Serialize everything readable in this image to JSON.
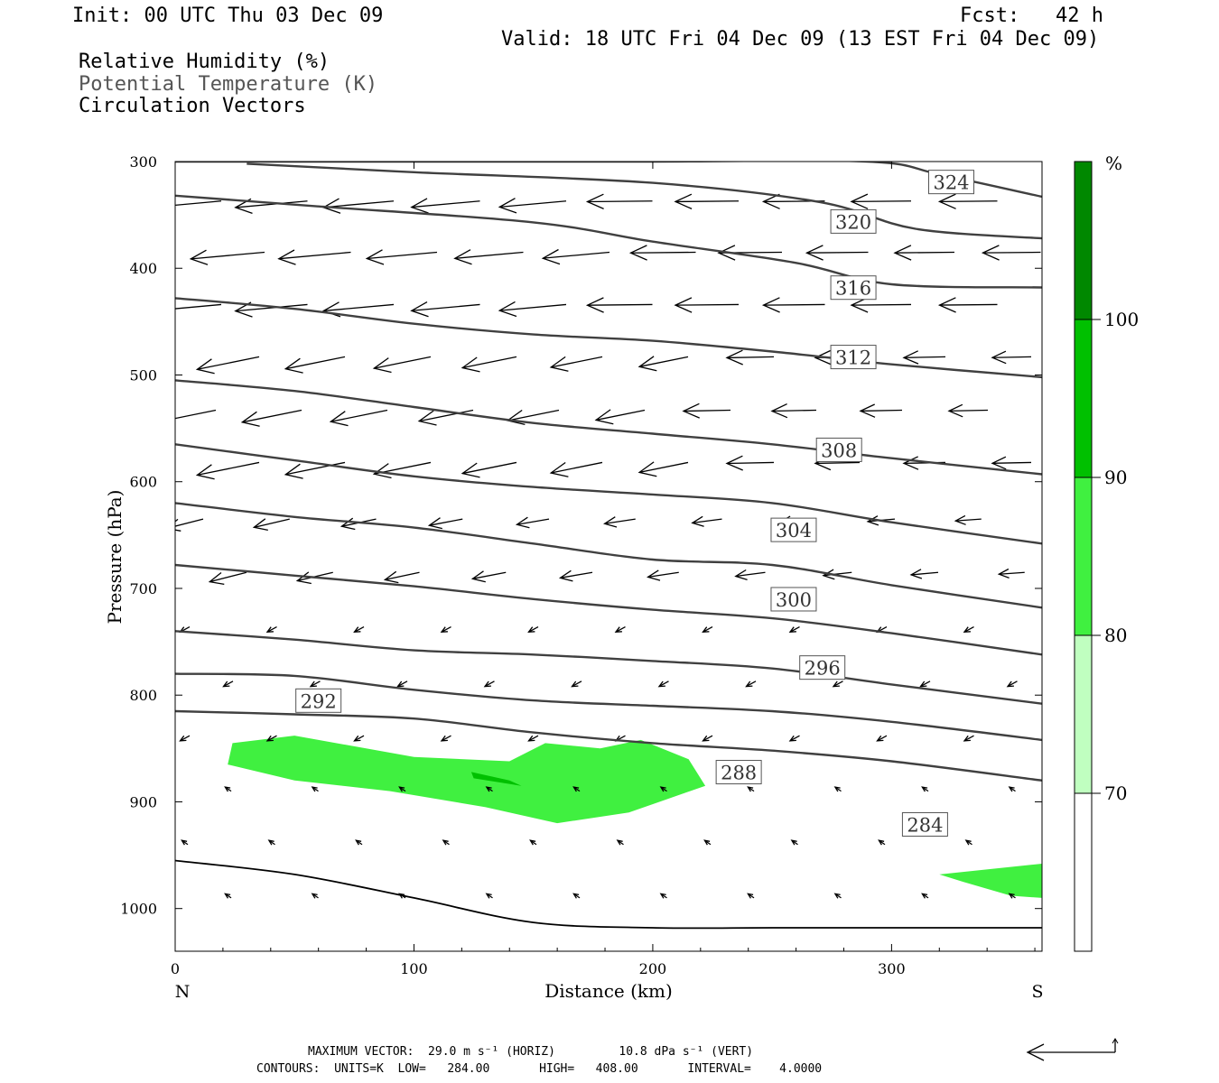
{
  "header": {
    "init": "Init: 00 UTC Thu 03 Dec 09",
    "fcst": "Fcst:   42 h",
    "valid": "Valid: 18 UTC Fri 04 Dec 09 (13 EST Fri 04 Dec 09)"
  },
  "legend_lines": {
    "rh": "Relative Humidity (%)",
    "theta": "Potential Temperature (K)",
    "vectors": "Circulation Vectors"
  },
  "footer": {
    "max_vector": "MAXIMUM VECTOR:  29.0 m s⁻¹ (HORIZ)         10.8 dPa s⁻¹ (VERT)",
    "contours": "CONTOURS:  UNITS=K  LOW=   284.00       HIGH=   408.00       INTERVAL=    4.0000"
  },
  "chart_data": {
    "type": "contour",
    "xlabel": "Distance (km)",
    "ylabel": "Pressure (hPa)",
    "xlim": [
      0,
      363
    ],
    "ylim": [
      300,
      1040
    ],
    "y_inverted": true,
    "xticks": [
      0,
      100,
      200,
      300
    ],
    "yticks": [
      300,
      400,
      500,
      600,
      700,
      800,
      900,
      1000
    ],
    "x_end_labels": {
      "left": "N",
      "right": "S"
    },
    "colorbar": {
      "unit": "%",
      "levels": [
        70,
        80,
        90,
        100
      ],
      "colors": [
        "#ffffff",
        "#c0ffc0",
        "#40f040",
        "#00c000",
        "#008800"
      ]
    },
    "theta_contours": [
      {
        "label": "324",
        "points": [
          [
            0,
            300
          ],
          [
            100,
            300
          ],
          [
            200,
            300
          ],
          [
            290,
            300
          ],
          [
            320,
            312
          ],
          [
            363,
            333
          ]
        ],
        "label_at": [
          325,
          320
        ]
      },
      {
        "label": "320",
        "points": [
          [
            30,
            302
          ],
          [
            100,
            310
          ],
          [
            200,
            320
          ],
          [
            270,
            338
          ],
          [
            310,
            363
          ],
          [
            363,
            372
          ]
        ],
        "label_at": [
          284,
          357
        ]
      },
      {
        "label": "316",
        "points": [
          [
            0,
            332
          ],
          [
            60,
            342
          ],
          [
            150,
            357
          ],
          [
            200,
            375
          ],
          [
            260,
            395
          ],
          [
            300,
            415
          ],
          [
            363,
            418
          ]
        ],
        "label_at": [
          284,
          419
        ]
      },
      {
        "label": "312",
        "points": [
          [
            0,
            428
          ],
          [
            50,
            438
          ],
          [
            100,
            452
          ],
          [
            150,
            462
          ],
          [
            200,
            468
          ],
          [
            250,
            478
          ],
          [
            300,
            490
          ],
          [
            363,
            502
          ]
        ],
        "label_at": [
          284,
          484
        ]
      },
      {
        "label": "308",
        "points": [
          [
            0,
            505
          ],
          [
            50,
            515
          ],
          [
            100,
            530
          ],
          [
            150,
            545
          ],
          [
            200,
            555
          ],
          [
            250,
            565
          ],
          [
            300,
            578
          ],
          [
            363,
            593
          ]
        ],
        "label_at": [
          278,
          571
        ]
      },
      {
        "label": "304",
        "points": [
          [
            0,
            565
          ],
          [
            50,
            580
          ],
          [
            100,
            595
          ],
          [
            150,
            605
          ],
          [
            200,
            612
          ],
          [
            250,
            620
          ],
          [
            300,
            638
          ],
          [
            363,
            658
          ]
        ],
        "label_at": [
          259,
          646
        ]
      },
      {
        "label": "300",
        "points": [
          [
            0,
            620
          ],
          [
            50,
            633
          ],
          [
            100,
            643
          ],
          [
            150,
            658
          ],
          [
            200,
            673
          ],
          [
            250,
            678
          ],
          [
            300,
            697
          ],
          [
            363,
            718
          ]
        ],
        "label_at": [
          259,
          711
        ]
      },
      {
        "label": "296",
        "points": [
          [
            0,
            678
          ],
          [
            50,
            688
          ],
          [
            100,
            698
          ],
          [
            150,
            710
          ],
          [
            200,
            720
          ],
          [
            250,
            728
          ],
          [
            300,
            742
          ],
          [
            363,
            762
          ]
        ],
        "label_at": [
          271,
          775
        ]
      },
      {
        "label": "292",
        "points": [
          [
            0,
            740
          ],
          [
            50,
            748
          ],
          [
            100,
            758
          ],
          [
            150,
            762
          ],
          [
            200,
            768
          ],
          [
            250,
            775
          ],
          [
            300,
            790
          ],
          [
            363,
            808
          ]
        ],
        "label_at": [
          60,
          806
        ]
      },
      {
        "label": "288",
        "points": [
          [
            0,
            780
          ],
          [
            50,
            782
          ],
          [
            100,
            795
          ],
          [
            150,
            805
          ],
          [
            200,
            810
          ],
          [
            250,
            815
          ],
          [
            300,
            825
          ],
          [
            363,
            842
          ]
        ],
        "label_at": [
          236,
          873
        ]
      },
      {
        "label": "284",
        "points": [
          [
            0,
            815
          ],
          [
            50,
            818
          ],
          [
            100,
            822
          ],
          [
            150,
            835
          ],
          [
            200,
            845
          ],
          [
            250,
            852
          ],
          [
            300,
            862
          ],
          [
            363,
            880
          ]
        ],
        "label_at": [
          314,
          922
        ]
      },
      {
        "label": "",
        "points": [
          [
            0,
            955
          ],
          [
            50,
            968
          ],
          [
            100,
            990
          ],
          [
            150,
            1013
          ],
          [
            200,
            1018
          ],
          [
            250,
            1018
          ],
          [
            300,
            1018
          ],
          [
            363,
            1018
          ]
        ],
        "label_at": null
      }
    ],
    "humidity_areas": [
      {
        "level": 80,
        "points": [
          [
            24,
            845
          ],
          [
            50,
            838
          ],
          [
            100,
            858
          ],
          [
            140,
            862
          ],
          [
            155,
            845
          ],
          [
            178,
            850
          ],
          [
            195,
            842
          ],
          [
            215,
            860
          ],
          [
            222,
            885
          ],
          [
            190,
            910
          ],
          [
            160,
            920
          ],
          [
            130,
            905
          ],
          [
            90,
            890
          ],
          [
            50,
            880
          ],
          [
            22,
            865
          ]
        ]
      },
      {
        "level": 90,
        "points": [
          [
            124,
            872
          ],
          [
            140,
            880
          ],
          [
            145,
            885
          ],
          [
            125,
            878
          ]
        ]
      },
      {
        "level": 80,
        "points": [
          [
            320,
            968
          ],
          [
            363,
            958
          ],
          [
            363,
            990
          ],
          [
            350,
            988
          ],
          [
            330,
            975
          ]
        ]
      }
    ],
    "vectors_note": "circulation vectors drawn as arrows on a regular grid"
  }
}
